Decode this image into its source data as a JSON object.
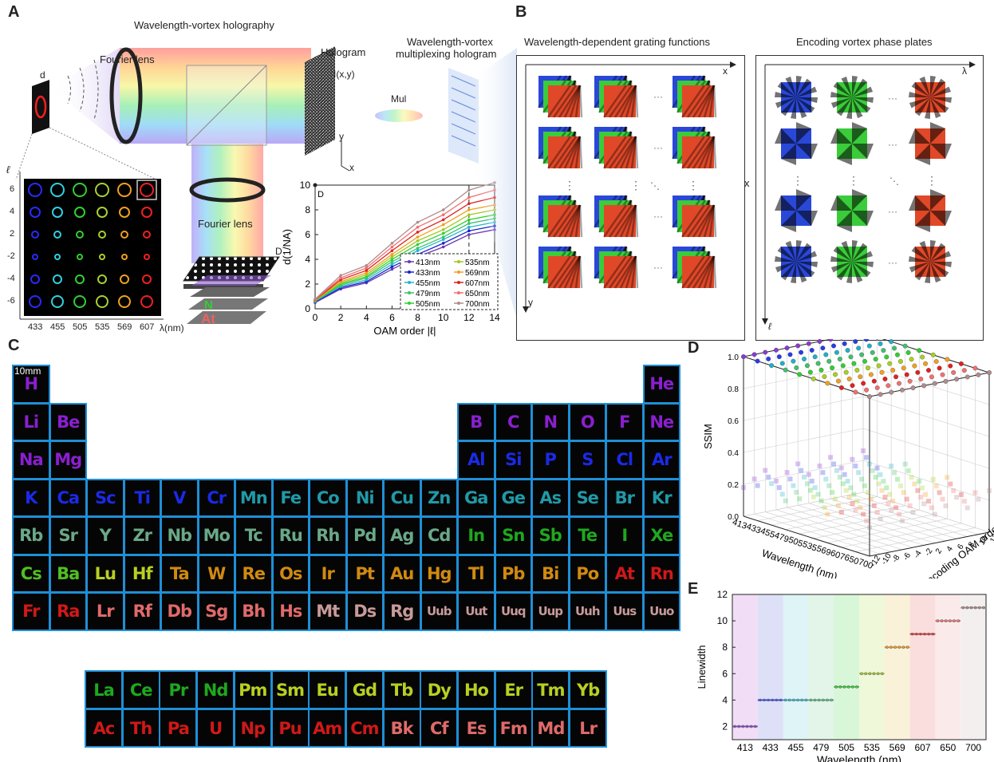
{
  "panels": {
    "a": "A",
    "b": "B",
    "c": "C",
    "d": "D",
    "e": "E"
  },
  "panel_a": {
    "title": "Wavelength-vortex holography",
    "fourier_lens_1": "Fourier lens",
    "fourier_lens_2": "Fourier lens",
    "hologram": "Hologram",
    "hologram_fn": "I(x,y)",
    "mux_hologram_1": "Wavelength-vortex",
    "mux_hologram_2": "multiplexing hologram",
    "mul": "Mul",
    "d_label": "d",
    "D_label": "D",
    "axis_y": "y",
    "axis_x": "x",
    "ell_symbol": "ℓ",
    "ell_values": [
      "6",
      "4",
      "2",
      "-2",
      "-4",
      "-6"
    ],
    "lambda_values": [
      "433",
      "455",
      "505",
      "535",
      "569",
      "607"
    ],
    "lambda_unit": "λ(nm)",
    "ring_colors": [
      "#2a2aff",
      "#30d0e0",
      "#30d030",
      "#a8d030",
      "#f0a020",
      "#f02020"
    ],
    "ring_radii": [
      8,
      6,
      4,
      3,
      5,
      7
    ]
  },
  "chart_data": {
    "type": "line",
    "xlabel": "OAM order |ℓ|",
    "ylabel": "d(1/NA)",
    "xlim": [
      0,
      14
    ],
    "ylim": [
      0,
      10
    ],
    "x": [
      0,
      2,
      4,
      6,
      8,
      10,
      12,
      14
    ],
    "annotation": "D",
    "annotation_value": 10,
    "annotation_x": 12,
    "series": [
      {
        "name": "413nm",
        "color": "#6a3ab0",
        "marker": "circle",
        "values": [
          0.5,
          1.6,
          2.1,
          3.2,
          4.2,
          5.0,
          6.0,
          6.4
        ]
      },
      {
        "name": "433nm",
        "color": "#1c22d8",
        "marker": "circle",
        "values": [
          0.55,
          1.7,
          2.2,
          3.4,
          4.4,
          5.3,
          6.3,
          6.7
        ]
      },
      {
        "name": "455nm",
        "color": "#20b8c8",
        "marker": "triangle",
        "values": [
          0.6,
          1.8,
          2.35,
          3.6,
          4.7,
          5.6,
          6.6,
          7.0
        ]
      },
      {
        "name": "479nm",
        "color": "#40c070",
        "marker": "triangle",
        "values": [
          0.62,
          1.9,
          2.5,
          3.8,
          4.9,
          5.8,
          6.9,
          7.3
        ]
      },
      {
        "name": "505nm",
        "color": "#30d030",
        "marker": "circle",
        "values": [
          0.65,
          2.0,
          2.6,
          4.0,
          5.2,
          6.1,
          7.2,
          7.6
        ]
      },
      {
        "name": "535nm",
        "color": "#a0c820",
        "marker": "square",
        "values": [
          0.68,
          2.1,
          2.75,
          4.2,
          5.5,
          6.4,
          7.6,
          8.0
        ]
      },
      {
        "name": "569nm",
        "color": "#f0a020",
        "marker": "triangle",
        "values": [
          0.7,
          2.2,
          2.9,
          4.4,
          5.8,
          6.8,
          8.0,
          8.4
        ]
      },
      {
        "name": "607nm",
        "color": "#e02020",
        "marker": "circle",
        "values": [
          0.72,
          2.35,
          3.1,
          4.7,
          6.2,
          7.2,
          8.5,
          9.0
        ]
      },
      {
        "name": "650nm",
        "color": "#f07070",
        "marker": "circle",
        "values": [
          0.75,
          2.5,
          3.3,
          5.0,
          6.6,
          7.6,
          9.0,
          9.6
        ]
      },
      {
        "name": "700nm",
        "color": "#b08c8c",
        "marker": "line",
        "values": [
          0.78,
          2.7,
          3.5,
          5.3,
          7.0,
          8.0,
          9.6,
          10.2
        ]
      }
    ]
  },
  "panel_b": {
    "title_left": "Wavelength-dependent grating functions",
    "title_right": "Encoding vortex phase plates",
    "axis_x": "x",
    "axis_y": "y",
    "axis_lambda": "λ",
    "axis_ell": "ℓ",
    "times": "x",
    "dots": "···"
  },
  "panel_c": {
    "scale_bar": "10mm",
    "rows": [
      [
        {
          "s": "H",
          "c": "#8a1fd0",
          "col": 0
        },
        {
          "s": "He",
          "c": "#8a1fd0",
          "col": 17
        }
      ],
      [
        {
          "s": "Li",
          "c": "#8a1fd0",
          "col": 0
        },
        {
          "s": "Be",
          "c": "#8a1fd0",
          "col": 1
        },
        {
          "s": "B",
          "c": "#8a1fd0",
          "col": 12
        },
        {
          "s": "C",
          "c": "#8a1fd0",
          "col": 13
        },
        {
          "s": "N",
          "c": "#8a1fd0",
          "col": 14
        },
        {
          "s": "O",
          "c": "#8a1fd0",
          "col": 15
        },
        {
          "s": "F",
          "c": "#8a1fd0",
          "col": 16
        },
        {
          "s": "Ne",
          "c": "#8a1fd0",
          "col": 17
        }
      ],
      [
        {
          "s": "Na",
          "c": "#8a1fd0",
          "col": 0
        },
        {
          "s": "Mg",
          "c": "#8a1fd0",
          "col": 1
        },
        {
          "s": "Al",
          "c": "#1a2ae8",
          "col": 12
        },
        {
          "s": "Si",
          "c": "#1a2ae8",
          "col": 13
        },
        {
          "s": "P",
          "c": "#1a2ae8",
          "col": 14
        },
        {
          "s": "S",
          "c": "#1a2ae8",
          "col": 15
        },
        {
          "s": "Cl",
          "c": "#1a2ae8",
          "col": 16
        },
        {
          "s": "Ar",
          "c": "#1a2ae8",
          "col": 17
        }
      ],
      [
        {
          "s": "K",
          "c": "#1a2ae8",
          "col": 0
        },
        {
          "s": "Ca",
          "c": "#1a2ae8",
          "col": 1
        },
        {
          "s": "Sc",
          "c": "#1a2ae8",
          "col": 2
        },
        {
          "s": "Ti",
          "c": "#1a2ae8",
          "col": 3
        },
        {
          "s": "V",
          "c": "#1a2ae8",
          "col": 4
        },
        {
          "s": "Cr",
          "c": "#1a2ae8",
          "col": 5
        },
        {
          "s": "Mn",
          "c": "#1f9aa8",
          "col": 6
        },
        {
          "s": "Fe",
          "c": "#1f9aa8",
          "col": 7
        },
        {
          "s": "Co",
          "c": "#1f9aa8",
          "col": 8
        },
        {
          "s": "Ni",
          "c": "#1f9aa8",
          "col": 9
        },
        {
          "s": "Cu",
          "c": "#1f9aa8",
          "col": 10
        },
        {
          "s": "Zn",
          "c": "#1f9aa8",
          "col": 11
        },
        {
          "s": "Ga",
          "c": "#1f9aa8",
          "col": 12
        },
        {
          "s": "Ge",
          "c": "#1f9aa8",
          "col": 13
        },
        {
          "s": "As",
          "c": "#1f9aa8",
          "col": 14
        },
        {
          "s": "Se",
          "c": "#1f9aa8",
          "col": 15
        },
        {
          "s": "Br",
          "c": "#1f9aa8",
          "col": 16
        },
        {
          "s": "Kr",
          "c": "#1f9aa8",
          "col": 17
        }
      ],
      [
        {
          "s": "Rb",
          "c": "#6aa888",
          "col": 0
        },
        {
          "s": "Sr",
          "c": "#6aa888",
          "col": 1
        },
        {
          "s": "Y",
          "c": "#6aa888",
          "col": 2
        },
        {
          "s": "Zr",
          "c": "#6aa888",
          "col": 3
        },
        {
          "s": "Nb",
          "c": "#6aa888",
          "col": 4
        },
        {
          "s": "Mo",
          "c": "#6aa888",
          "col": 5
        },
        {
          "s": "Tc",
          "c": "#6aa888",
          "col": 6
        },
        {
          "s": "Ru",
          "c": "#6aa888",
          "col": 7
        },
        {
          "s": "Rh",
          "c": "#6aa888",
          "col": 8
        },
        {
          "s": "Pd",
          "c": "#6aa888",
          "col": 9
        },
        {
          "s": "Ag",
          "c": "#6aa888",
          "col": 10
        },
        {
          "s": "Cd",
          "c": "#6aa888",
          "col": 11
        },
        {
          "s": "In",
          "c": "#1ea81e",
          "col": 12
        },
        {
          "s": "Sn",
          "c": "#1ea81e",
          "col": 13
        },
        {
          "s": "Sb",
          "c": "#1ea81e",
          "col": 14
        },
        {
          "s": "Te",
          "c": "#1ea81e",
          "col": 15
        },
        {
          "s": "I",
          "c": "#1ea81e",
          "col": 16
        },
        {
          "s": "Xe",
          "c": "#1ea81e",
          "col": 17
        }
      ],
      [
        {
          "s": "Cs",
          "c": "#50c020",
          "col": 0
        },
        {
          "s": "Ba",
          "c": "#50c020",
          "col": 1
        },
        {
          "s": "Lu",
          "c": "#b8d020",
          "col": 2
        },
        {
          "s": "Hf",
          "c": "#b8d020",
          "col": 3
        },
        {
          "s": "Ta",
          "c": "#d08a10",
          "col": 4
        },
        {
          "s": "W",
          "c": "#d08a10",
          "col": 5
        },
        {
          "s": "Re",
          "c": "#d08a10",
          "col": 6
        },
        {
          "s": "Os",
          "c": "#d08a10",
          "col": 7
        },
        {
          "s": "Ir",
          "c": "#d08a10",
          "col": 8
        },
        {
          "s": "Pt",
          "c": "#d08a10",
          "col": 9
        },
        {
          "s": "Au",
          "c": "#d08a10",
          "col": 10
        },
        {
          "s": "Hg",
          "c": "#d08a10",
          "col": 11
        },
        {
          "s": "Tl",
          "c": "#d08a10",
          "col": 12
        },
        {
          "s": "Pb",
          "c": "#d08a10",
          "col": 13
        },
        {
          "s": "Bi",
          "c": "#d08a10",
          "col": 14
        },
        {
          "s": "Po",
          "c": "#d08a10",
          "col": 15
        },
        {
          "s": "At",
          "c": "#d01818",
          "col": 16
        },
        {
          "s": "Rn",
          "c": "#d01818",
          "col": 17
        }
      ],
      [
        {
          "s": "Fr",
          "c": "#d01818",
          "col": 0
        },
        {
          "s": "Ra",
          "c": "#d01818",
          "col": 1
        },
        {
          "s": "Lr",
          "c": "#e06a6a",
          "col": 2
        },
        {
          "s": "Rf",
          "c": "#e06a6a",
          "col": 3
        },
        {
          "s": "Db",
          "c": "#e06a6a",
          "col": 4
        },
        {
          "s": "Sg",
          "c": "#e06a6a",
          "col": 5
        },
        {
          "s": "Bh",
          "c": "#e06a6a",
          "col": 6
        },
        {
          "s": "Hs",
          "c": "#e06a6a",
          "col": 7
        },
        {
          "s": "Mt",
          "c": "#c89a9a",
          "col": 8
        },
        {
          "s": "Ds",
          "c": "#c89a9a",
          "col": 9
        },
        {
          "s": "Rg",
          "c": "#c89a9a",
          "col": 10
        },
        {
          "s": "Uub",
          "c": "#c89a9a",
          "col": 11
        },
        {
          "s": "Uut",
          "c": "#c89a9a",
          "col": 12
        },
        {
          "s": "Uuq",
          "c": "#c89a9a",
          "col": 13
        },
        {
          "s": "Uup",
          "c": "#c89a9a",
          "col": 14
        },
        {
          "s": "Uuh",
          "c": "#c89a9a",
          "col": 15
        },
        {
          "s": "Uus",
          "c": "#c89a9a",
          "col": 16
        },
        {
          "s": "Uuo",
          "c": "#c89a9a",
          "col": 17
        }
      ]
    ],
    "lanthanides": [
      {
        "s": "La",
        "c": "#1ea81e"
      },
      {
        "s": "Ce",
        "c": "#1ea81e"
      },
      {
        "s": "Pr",
        "c": "#1ea81e"
      },
      {
        "s": "Nd",
        "c": "#1ea81e"
      },
      {
        "s": "Pm",
        "c": "#b8d020"
      },
      {
        "s": "Sm",
        "c": "#b8d020"
      },
      {
        "s": "Eu",
        "c": "#b8d020"
      },
      {
        "s": "Gd",
        "c": "#b8d020"
      },
      {
        "s": "Tb",
        "c": "#b8d020"
      },
      {
        "s": "Dy",
        "c": "#b8d020"
      },
      {
        "s": "Ho",
        "c": "#b8d020"
      },
      {
        "s": "Er",
        "c": "#b8d020"
      },
      {
        "s": "Tm",
        "c": "#b8d020"
      },
      {
        "s": "Yb",
        "c": "#b8d020"
      }
    ],
    "actinides": [
      {
        "s": "Ac",
        "c": "#d01818"
      },
      {
        "s": "Th",
        "c": "#d01818"
      },
      {
        "s": "Pa",
        "c": "#d01818"
      },
      {
        "s": "U",
        "c": "#d01818"
      },
      {
        "s": "Np",
        "c": "#d01818"
      },
      {
        "s": "Pu",
        "c": "#d01818"
      },
      {
        "s": "Am",
        "c": "#d01818"
      },
      {
        "s": "Cm",
        "c": "#d01818"
      },
      {
        "s": "Bk",
        "c": "#e06a6a"
      },
      {
        "s": "Cf",
        "c": "#e06a6a"
      },
      {
        "s": "Es",
        "c": "#e06a6a"
      },
      {
        "s": "Fm",
        "c": "#e06a6a"
      },
      {
        "s": "Md",
        "c": "#e06a6a"
      },
      {
        "s": "Lr",
        "c": "#e06a6a"
      }
    ]
  },
  "panel_d": {
    "zlabel": "SSIM",
    "xlabel": "Wavelength (nm)",
    "ylabel": "Decoding OAM order",
    "z_ticks": [
      "0.0",
      "0.2",
      "0.4",
      "0.6",
      "0.8",
      "1.0"
    ],
    "wavelength_ticks": [
      "413",
      "433",
      "455",
      "479",
      "505",
      "535",
      "569",
      "607",
      "650",
      "700"
    ],
    "oam_ticks": [
      "-12",
      "-10",
      "-8",
      "-6",
      "-4",
      "-2",
      "2",
      "4",
      "6",
      "8",
      "10",
      "12"
    ]
  },
  "panel_e": {
    "xlabel": "Wavelength (nm)",
    "ylabel": "Linewidth",
    "y_ticks": [
      "2",
      "4",
      "6",
      "8",
      "10",
      "12"
    ],
    "x_ticks": [
      "413",
      "433",
      "455",
      "479",
      "505",
      "535",
      "569",
      "607",
      "650",
      "700"
    ],
    "band_colors": [
      "#e8c8f0",
      "#c8ccf4",
      "#c8ecf0",
      "#d0ecd8",
      "#bef0be",
      "#e4f4c0",
      "#f6e8c0",
      "#f6c8c8",
      "#f8dcdc",
      "#ece4e4"
    ],
    "levels": [
      2,
      4,
      4,
      4,
      5,
      6,
      8,
      9,
      10,
      11
    ]
  }
}
